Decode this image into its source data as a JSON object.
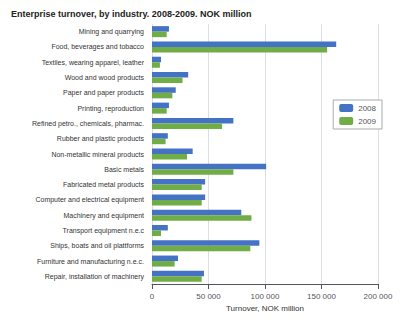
{
  "chart_data": {
    "type": "bar",
    "orientation": "horizontal",
    "title": "Enterprise turnover, by industry. 2008-2009. NOK million",
    "categories": [
      "Mining and quarrying",
      "Food, beverages and tobacco",
      "Textiles, wearing apparel, leather",
      "Wood and wood products",
      "Paper and paper products",
      "Printing, reproduction",
      "Refined petro., chemicals, pharmac.",
      "Rubber and plastic products",
      "Non-metallic mineral products",
      "Basic metals",
      "Fabricated metal products",
      "Computer and electrical equipment",
      "Machinery and equipment",
      "Transport equipment n.e.c",
      "Ships, boats and oil plattforms",
      "Furniture and manufacturing n.e.c.",
      "Repair, installation of machinery"
    ],
    "series": [
      {
        "name": "2008",
        "color": "#4472c4",
        "values": [
          15000,
          163000,
          8000,
          32000,
          21000,
          15000,
          72000,
          14000,
          36000,
          101000,
          47000,
          47000,
          79000,
          14000,
          95000,
          23000,
          46000
        ]
      },
      {
        "name": "2009",
        "color": "#70ad47",
        "values": [
          13000,
          155000,
          7000,
          27000,
          18000,
          13000,
          62000,
          12000,
          31000,
          72000,
          44000,
          44000,
          88000,
          8000,
          87000,
          20000,
          44000
        ]
      }
    ],
    "xlabel": "Turnover, NOK million",
    "xlim": [
      0,
      200000
    ],
    "xticks": [
      0,
      {
        "value": 50000,
        "label": "50 000"
      },
      {
        "value": 100000,
        "label": "100 000"
      },
      {
        "value": 150000,
        "label": "150 000"
      },
      {
        "value": 200000,
        "label": "200 000"
      }
    ],
    "grid": true,
    "legend": "right"
  }
}
